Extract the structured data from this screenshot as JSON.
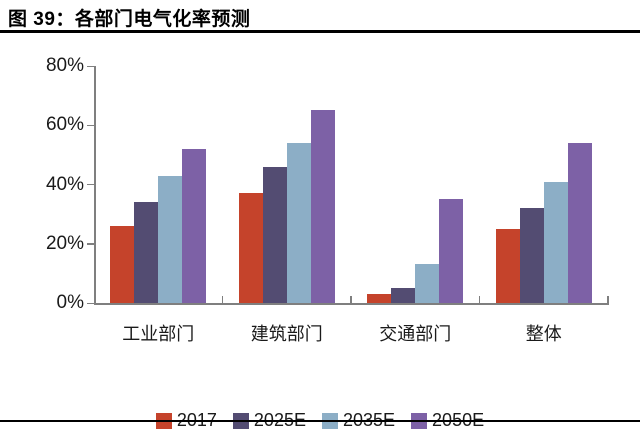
{
  "figure": {
    "title": "图 39：各部门电气化率预测"
  },
  "chart_data": {
    "type": "bar",
    "title": "各部门电气化率预测",
    "categories": [
      "工业部门",
      "建筑部门",
      "交通部门",
      "整体"
    ],
    "series": [
      {
        "name": "2017",
        "color": "#C5432B",
        "values": [
          26,
          37,
          3,
          25
        ]
      },
      {
        "name": "2025E",
        "color": "#534C72",
        "values": [
          34,
          46,
          5,
          32
        ]
      },
      {
        "name": "2035E",
        "color": "#8CAEC6",
        "values": [
          43,
          54,
          13,
          41
        ]
      },
      {
        "name": "2050E",
        "color": "#7D61A6",
        "values": [
          52,
          65,
          35,
          54
        ]
      }
    ],
    "xlabel": "",
    "ylabel": "",
    "ylim": [
      0,
      80
    ],
    "ytick_step": 20,
    "ytick_labels": [
      "0%",
      "20%",
      "40%",
      "60%",
      "80%"
    ],
    "grid": false,
    "legend_position": "bottom",
    "axis_color": "#7f7f7f",
    "text_color": "#1a1a1a"
  }
}
